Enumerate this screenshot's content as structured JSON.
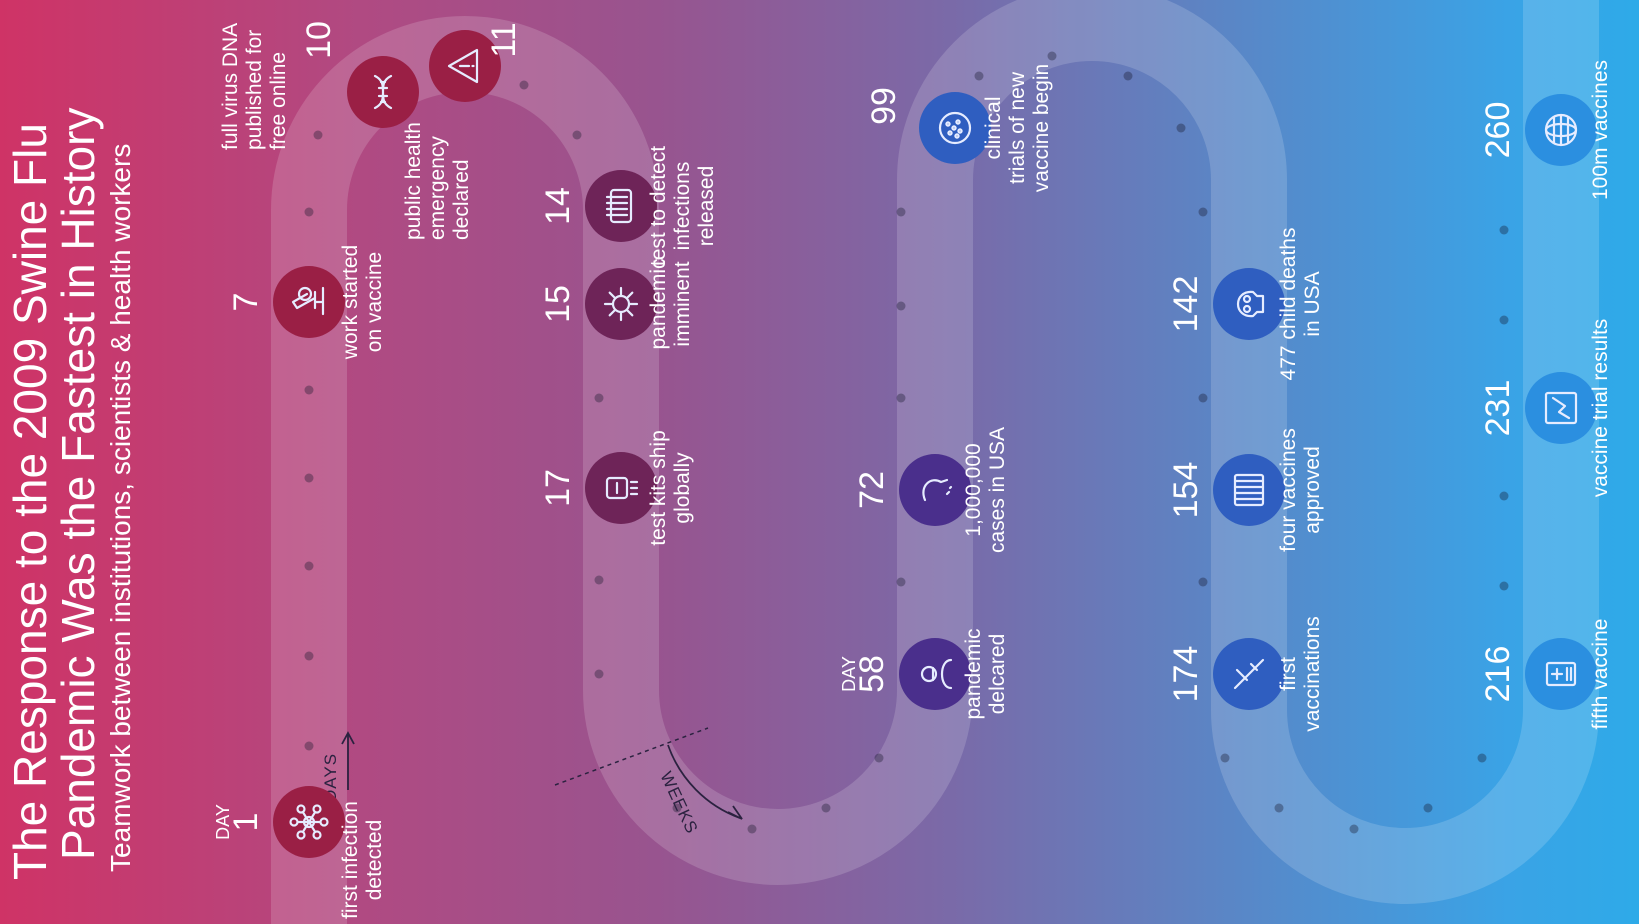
{
  "title_line1": "The Response to the 2009 Swine Flu",
  "title_line2": "Pandemic Was the Fastest in History",
  "subtitle": "Teamwork between institutions, scientists & health workers",
  "axis_days_label": "DAYS",
  "axis_weeks_label": "WEEKS",
  "day_word": "DAY",
  "colors": {
    "node_red": "#9a1f45",
    "node_plum": "#6e2458",
    "node_indigo": "#4a2f8c",
    "node_blue": "#2f5ec0",
    "node_sky": "#2b8fe0"
  },
  "events": [
    {
      "day": "1",
      "show_day_word": true,
      "label": [
        "first infection",
        "detected"
      ],
      "icon": "network-icon"
    },
    {
      "day": "7",
      "show_day_word": false,
      "label": [
        "work started",
        "on vaccine"
      ],
      "icon": "microscope-icon"
    },
    {
      "day": "10",
      "show_day_word": false,
      "label": [
        "full virus DNA",
        "published for",
        "free online"
      ],
      "icon": "dna-icon"
    },
    {
      "day": "11",
      "show_day_word": false,
      "label": [
        "public health",
        "emergency",
        "declared"
      ],
      "icon": "warning-icon"
    },
    {
      "day": "14",
      "show_day_word": false,
      "label": [
        "test to detect",
        "infections",
        "released"
      ],
      "icon": "test-tube-rack-icon"
    },
    {
      "day": "15",
      "show_day_word": false,
      "label": [
        "pandemic",
        "imminent"
      ],
      "icon": "virus-icon"
    },
    {
      "day": "17",
      "show_day_word": false,
      "label": [
        "test kits ship",
        "globally"
      ],
      "icon": "test-kit-icon"
    },
    {
      "day": "58",
      "show_day_word": true,
      "label": [
        "pandemic",
        "delcared"
      ],
      "icon": "doctor-icon"
    },
    {
      "day": "72",
      "show_day_word": false,
      "label": [
        "1,000,000",
        "cases in USA"
      ],
      "icon": "sneeze-icon"
    },
    {
      "day": "99",
      "show_day_word": false,
      "label": [
        "clinical",
        "trials of new",
        "vaccine begin"
      ],
      "icon": "petri-dish-icon"
    },
    {
      "day": "142",
      "show_day_word": false,
      "label": [
        "477 child deaths",
        "in USA"
      ],
      "icon": "skull-icon"
    },
    {
      "day": "154",
      "show_day_word": false,
      "label": [
        "four vaccines",
        "approved"
      ],
      "icon": "vials-icon"
    },
    {
      "day": "174",
      "show_day_word": false,
      "label": [
        "first",
        "vaccinations"
      ],
      "icon": "syringe-icon"
    },
    {
      "day": "216",
      "show_day_word": false,
      "label": [
        "fifth vaccine"
      ],
      "icon": "medical-record-icon"
    },
    {
      "day": "231",
      "show_day_word": false,
      "label": [
        "vaccine trial results"
      ],
      "icon": "chart-icon"
    },
    {
      "day": "260",
      "show_day_word": false,
      "label": [
        "100m vaccines"
      ],
      "icon": "globe-icon"
    }
  ]
}
